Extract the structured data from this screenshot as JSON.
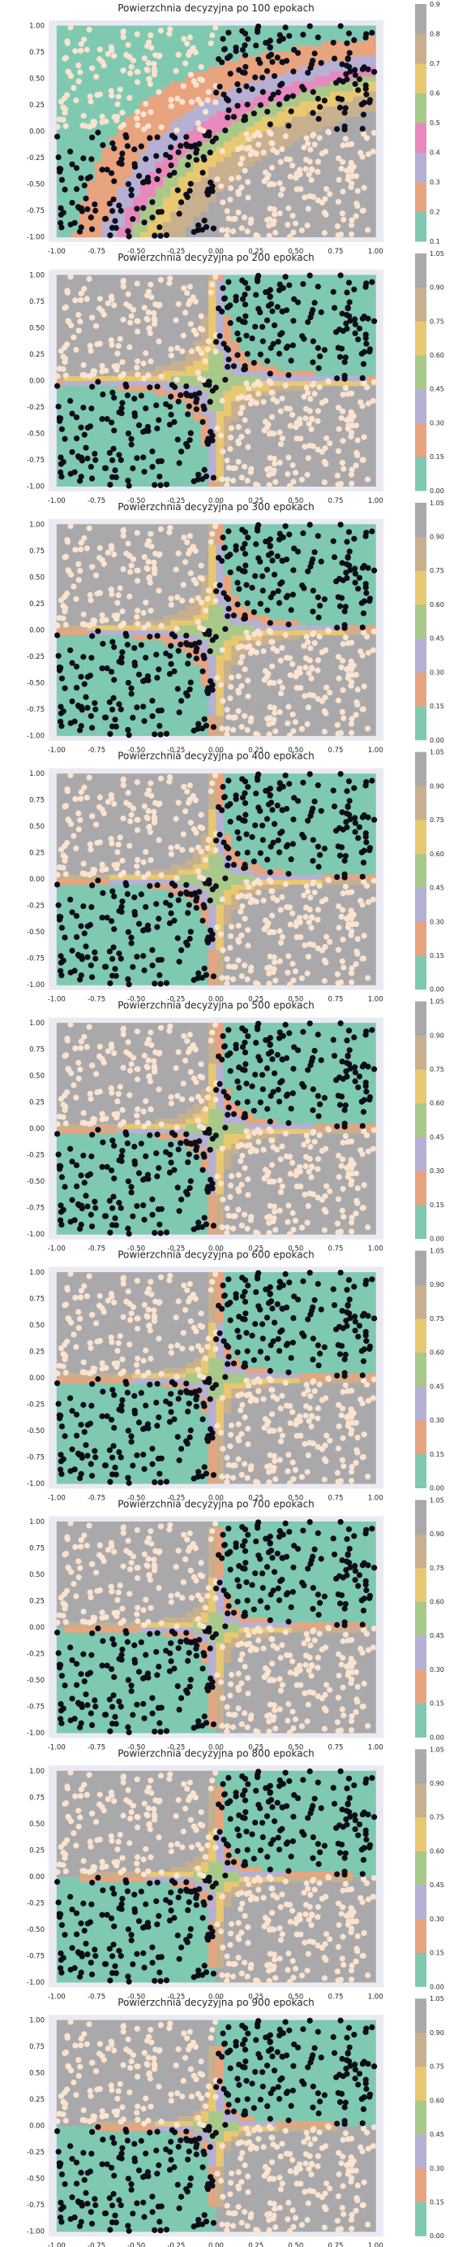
{
  "chart_data": [
    {
      "type": "heatmap",
      "title": "Powierzchnia decyzyjna po 100 epokach",
      "xlim": [
        -1.05,
        1.05
      ],
      "ylim": [
        -1.05,
        1.05
      ],
      "x_ticks": [
        "-1.00",
        "-0.75",
        "-0.50",
        "-0.25",
        "0.00",
        "0.25",
        "0.50",
        "0.75",
        "1.00"
      ],
      "y_ticks": [
        "1.00",
        "0.75",
        "0.50",
        "0.25",
        "0.00",
        "-0.25",
        "-0.50",
        "-0.75",
        "-1.00"
      ],
      "colorbar_ticks": [
        "0.9",
        "0.8",
        "0.7",
        "0.6",
        "0.5",
        "0.4",
        "0.3",
        "0.2",
        "0.1"
      ],
      "colorbar_range": [
        0.1,
        0.9
      ],
      "epoch": 100
    },
    {
      "type": "heatmap",
      "title": "Powierzchnia decyzyjna po 200 epokach",
      "xlim": [
        -1.05,
        1.05
      ],
      "ylim": [
        -1.05,
        1.05
      ],
      "x_ticks": [
        "-1.00",
        "-0.75",
        "-0.50",
        "-0.25",
        "0.00",
        "0.25",
        "0.50",
        "0.75",
        "1.00"
      ],
      "y_ticks": [
        "1.00",
        "0.75",
        "0.50",
        "0.25",
        "0.00",
        "-0.25",
        "-0.50",
        "-0.75",
        "-1.00"
      ],
      "colorbar_ticks": [
        "1.05",
        "0.90",
        "0.75",
        "0.60",
        "0.45",
        "0.30",
        "0.15",
        "0.00"
      ],
      "colorbar_range": [
        0.0,
        1.05
      ],
      "epoch": 200
    },
    {
      "type": "heatmap",
      "title": "Powierzchnia decyzyjna po 300 epokach",
      "xlim": [
        -1.05,
        1.05
      ],
      "ylim": [
        -1.05,
        1.05
      ],
      "x_ticks": [
        "-1.00",
        "-0.75",
        "-0.50",
        "-0.25",
        "0.00",
        "0.25",
        "0.50",
        "0.75",
        "1.00"
      ],
      "y_ticks": [
        "1.00",
        "0.75",
        "0.50",
        "0.25",
        "0.00",
        "-0.25",
        "-0.50",
        "-0.75",
        "-1.00"
      ],
      "colorbar_ticks": [
        "1.05",
        "0.90",
        "0.75",
        "0.60",
        "0.45",
        "0.30",
        "0.15",
        "0.00"
      ],
      "colorbar_range": [
        0.0,
        1.05
      ],
      "epoch": 300
    },
    {
      "type": "heatmap",
      "title": "Powierzchnia decyzyjna po 400 epokach",
      "xlim": [
        -1.05,
        1.05
      ],
      "ylim": [
        -1.05,
        1.05
      ],
      "x_ticks": [
        "-1.00",
        "-0.75",
        "-0.50",
        "-0.25",
        "0.00",
        "0.25",
        "0.50",
        "0.75",
        "1.00"
      ],
      "y_ticks": [
        "1.00",
        "0.75",
        "0.50",
        "0.25",
        "0.00",
        "-0.25",
        "-0.50",
        "-0.75",
        "-1.00"
      ],
      "colorbar_ticks": [
        "1.05",
        "0.90",
        "0.75",
        "0.60",
        "0.45",
        "0.30",
        "0.15",
        "0.00"
      ],
      "colorbar_range": [
        0.0,
        1.05
      ],
      "epoch": 400
    },
    {
      "type": "heatmap",
      "title": "Powierzchnia decyzyjna po 500 epokach",
      "xlim": [
        -1.05,
        1.05
      ],
      "ylim": [
        -1.05,
        1.05
      ],
      "x_ticks": [
        "-1.00",
        "-0.75",
        "-0.50",
        "-0.25",
        "0.00",
        "0.25",
        "0.50",
        "0.75",
        "1.00"
      ],
      "y_ticks": [
        "1.00",
        "0.75",
        "0.50",
        "0.25",
        "0.00",
        "-0.25",
        "-0.50",
        "-0.75",
        "-1.00"
      ],
      "colorbar_ticks": [
        "1.05",
        "0.90",
        "0.75",
        "0.60",
        "0.45",
        "0.30",
        "0.15",
        "0.00"
      ],
      "colorbar_range": [
        0.0,
        1.05
      ],
      "epoch": 500
    },
    {
      "type": "heatmap",
      "title": "Powierzchnia decyzyjna po 600 epokach",
      "xlim": [
        -1.05,
        1.05
      ],
      "ylim": [
        -1.05,
        1.05
      ],
      "x_ticks": [
        "-1.00",
        "-0.75",
        "-0.50",
        "-0.25",
        "0.00",
        "0.25",
        "0.50",
        "0.75",
        "1.00"
      ],
      "y_ticks": [
        "1.00",
        "0.75",
        "0.50",
        "0.25",
        "0.00",
        "-0.25",
        "-0.50",
        "-0.75",
        "-1.00"
      ],
      "colorbar_ticks": [
        "1.05",
        "0.90",
        "0.75",
        "0.60",
        "0.45",
        "0.30",
        "0.15",
        "0.00"
      ],
      "colorbar_range": [
        0.0,
        1.05
      ],
      "epoch": 600
    },
    {
      "type": "heatmap",
      "title": "Powierzchnia decyzyjna po 700 epokach",
      "xlim": [
        -1.05,
        1.05
      ],
      "ylim": [
        -1.05,
        1.05
      ],
      "x_ticks": [
        "-1.00",
        "-0.75",
        "-0.50",
        "-0.25",
        "0.00",
        "0.25",
        "0.50",
        "0.75",
        "1.00"
      ],
      "y_ticks": [
        "1.00",
        "0.75",
        "0.50",
        "0.25",
        "0.00",
        "-0.25",
        "-0.50",
        "-0.75",
        "-1.00"
      ],
      "colorbar_ticks": [
        "1.05",
        "0.90",
        "0.75",
        "0.60",
        "0.45",
        "0.30",
        "0.15",
        "0.00"
      ],
      "colorbar_range": [
        0.0,
        1.05
      ],
      "epoch": 700
    },
    {
      "type": "heatmap",
      "title": "Powierzchnia decyzyjna po 800 epokach",
      "xlim": [
        -1.05,
        1.05
      ],
      "ylim": [
        -1.05,
        1.05
      ],
      "x_ticks": [
        "-1.00",
        "-0.75",
        "-0.50",
        "-0.25",
        "0.00",
        "0.25",
        "0.50",
        "0.75",
        "1.00"
      ],
      "y_ticks": [
        "1.00",
        "0.75",
        "0.50",
        "0.25",
        "0.00",
        "-0.25",
        "-0.50",
        "-0.75",
        "-1.00"
      ],
      "colorbar_ticks": [
        "1.05",
        "0.90",
        "0.75",
        "0.60",
        "0.45",
        "0.30",
        "0.15",
        "0.00"
      ],
      "colorbar_range": [
        0.0,
        1.05
      ],
      "epoch": 800
    },
    {
      "type": "heatmap",
      "title": "Powierzchnia decyzyjna po 900 epokach",
      "xlim": [
        -1.05,
        1.05
      ],
      "ylim": [
        -1.05,
        1.05
      ],
      "x_ticks": [
        "-1.00",
        "-0.75",
        "-0.50",
        "-0.25",
        "0.00",
        "0.25",
        "0.50",
        "0.75",
        "1.00"
      ],
      "y_ticks": [
        "1.00",
        "0.75",
        "0.50",
        "0.25",
        "0.00",
        "-0.25",
        "-0.50",
        "-0.75",
        "-1.00"
      ],
      "colorbar_ticks": [
        "1.05",
        "0.90",
        "0.75",
        "0.60",
        "0.45",
        "0.30",
        "0.15",
        "0.00"
      ],
      "colorbar_range": [
        0.0,
        1.05
      ],
      "epoch": 900
    }
  ],
  "colors": {
    "levels": [
      "#7fc9b1",
      "#e8a37f",
      "#b5b0d4",
      "#a8c98a",
      "#e8c870",
      "#c8b08e",
      "#a9a9ab"
    ],
    "levels_100": [
      "#7fc9b1",
      "#e8a37f",
      "#b5b0d4",
      "#e888bd",
      "#a8c98a",
      "#e8c870",
      "#c8b08e",
      "#a9a9ab"
    ],
    "class_dark": "#0d0d1a",
    "class_light": "#fbe3cf",
    "axes_bg": "#eaeaf2"
  }
}
